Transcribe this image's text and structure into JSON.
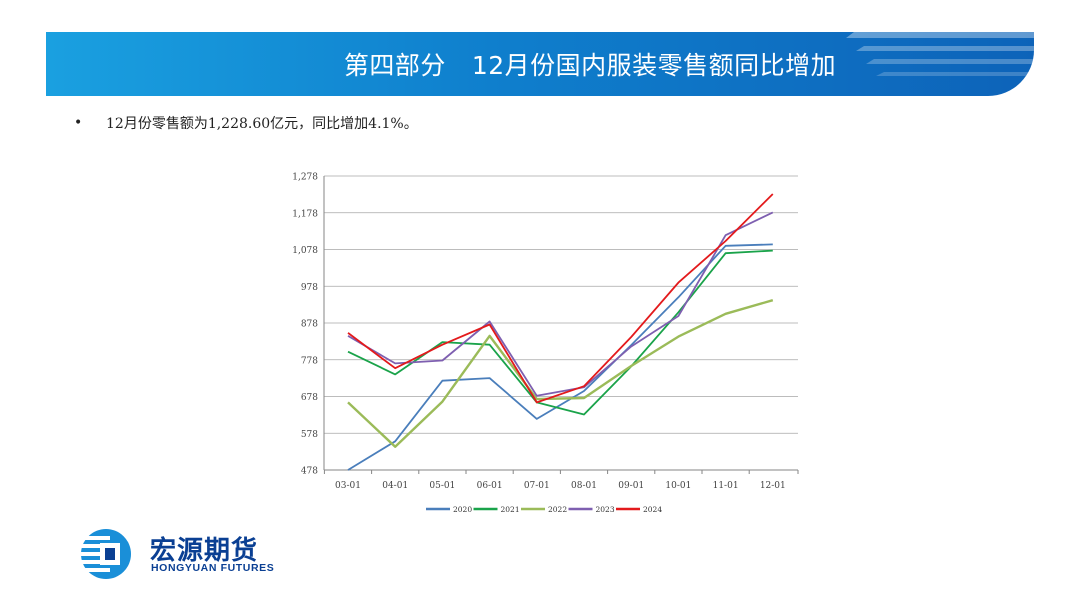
{
  "header": {
    "section": "第四部分",
    "title": "12月份国内服装零售额同比增加"
  },
  "bullet": "12月份零售额为1,228.60亿元，同比增加4.1%。",
  "logo": {
    "cn": "宏源期货",
    "en": "HONGYUAN FUTURES"
  },
  "chart_data": {
    "type": "line",
    "title": "",
    "xlabel": "",
    "ylabel": "",
    "categories": [
      "03-01",
      "04-01",
      "05-01",
      "06-01",
      "07-01",
      "08-01",
      "09-01",
      "10-01",
      "11-01",
      "12-01"
    ],
    "ylim": [
      478,
      1278
    ],
    "yticks": [
      478,
      578,
      678,
      778,
      878,
      978,
      1078,
      1178,
      1278
    ],
    "ytick_labels": [
      "478",
      "578",
      "678",
      "778",
      "878",
      "978",
      "1,078",
      "1,178",
      "1,278"
    ],
    "grid": true,
    "legend_position": "bottom",
    "series": [
      {
        "name": "2020",
        "color": "#4a7ebb",
        "values": [
          478,
          556,
          721,
          728,
          617,
          693,
          818,
          948,
          1088,
          1092
        ]
      },
      {
        "name": "2021",
        "color": "#1aa34a",
        "values": [
          800,
          738,
          826,
          819,
          662,
          629,
          760,
          907,
          1068,
          1075
        ]
      },
      {
        "name": "2022",
        "color": "#9bbb59",
        "values": [
          662,
          541,
          664,
          843,
          671,
          674,
          761,
          841,
          903,
          940
        ]
      },
      {
        "name": "2023",
        "color": "#7e5fb0",
        "values": [
          843,
          768,
          776,
          882,
          680,
          703,
          814,
          897,
          1117,
          1179
        ]
      },
      {
        "name": "2024",
        "color": "#e31a1c",
        "values": [
          851,
          755,
          819,
          874,
          662,
          706,
          840,
          988,
          1101,
          1229
        ]
      }
    ]
  }
}
